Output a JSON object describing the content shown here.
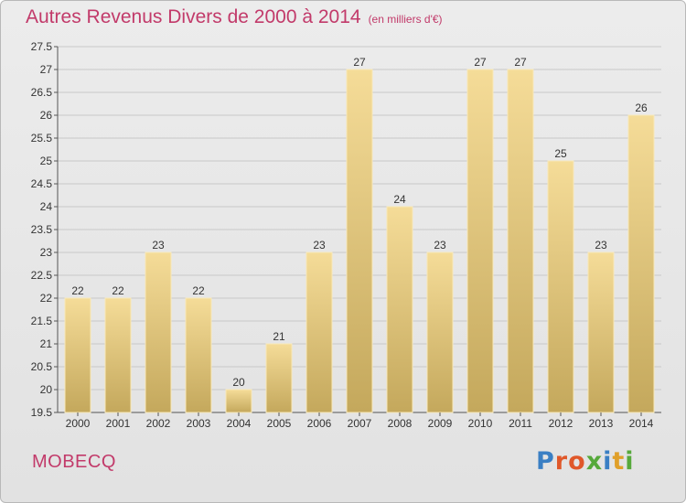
{
  "header": {
    "title": "Autres Revenus Divers de 2000 à 2014",
    "unit": "(en milliers d'€)"
  },
  "footer": {
    "location": "MOBECQ",
    "brand": "Proxiti"
  },
  "colors": {
    "title": "#c23a6a",
    "bar_light": "#f5dc98",
    "bar_dark": "#c4a85c",
    "grid": "#c8c8c8"
  },
  "chart_data": {
    "type": "bar",
    "categories": [
      "2000",
      "2001",
      "2002",
      "2003",
      "2004",
      "2005",
      "2006",
      "2007",
      "2008",
      "2009",
      "2010",
      "2011",
      "2012",
      "2013",
      "2014"
    ],
    "values": [
      22,
      22,
      23,
      22,
      20,
      21,
      23,
      27,
      24,
      23,
      27,
      27,
      25,
      23,
      26
    ],
    "value_labels": [
      "22",
      "22",
      "23",
      "22",
      "20",
      "21",
      "23",
      "27",
      "24",
      "23",
      "27",
      "27",
      "25",
      "23",
      "26"
    ],
    "title": "Autres Revenus Divers de 2000 à 2014",
    "ylim": [
      19.5,
      27.5
    ],
    "yticks": [
      19.5,
      20,
      20.5,
      21,
      21.5,
      22,
      22.5,
      23,
      23.5,
      24,
      24.5,
      25,
      25.5,
      26,
      26.5,
      27,
      27.5
    ],
    "grid": true
  }
}
